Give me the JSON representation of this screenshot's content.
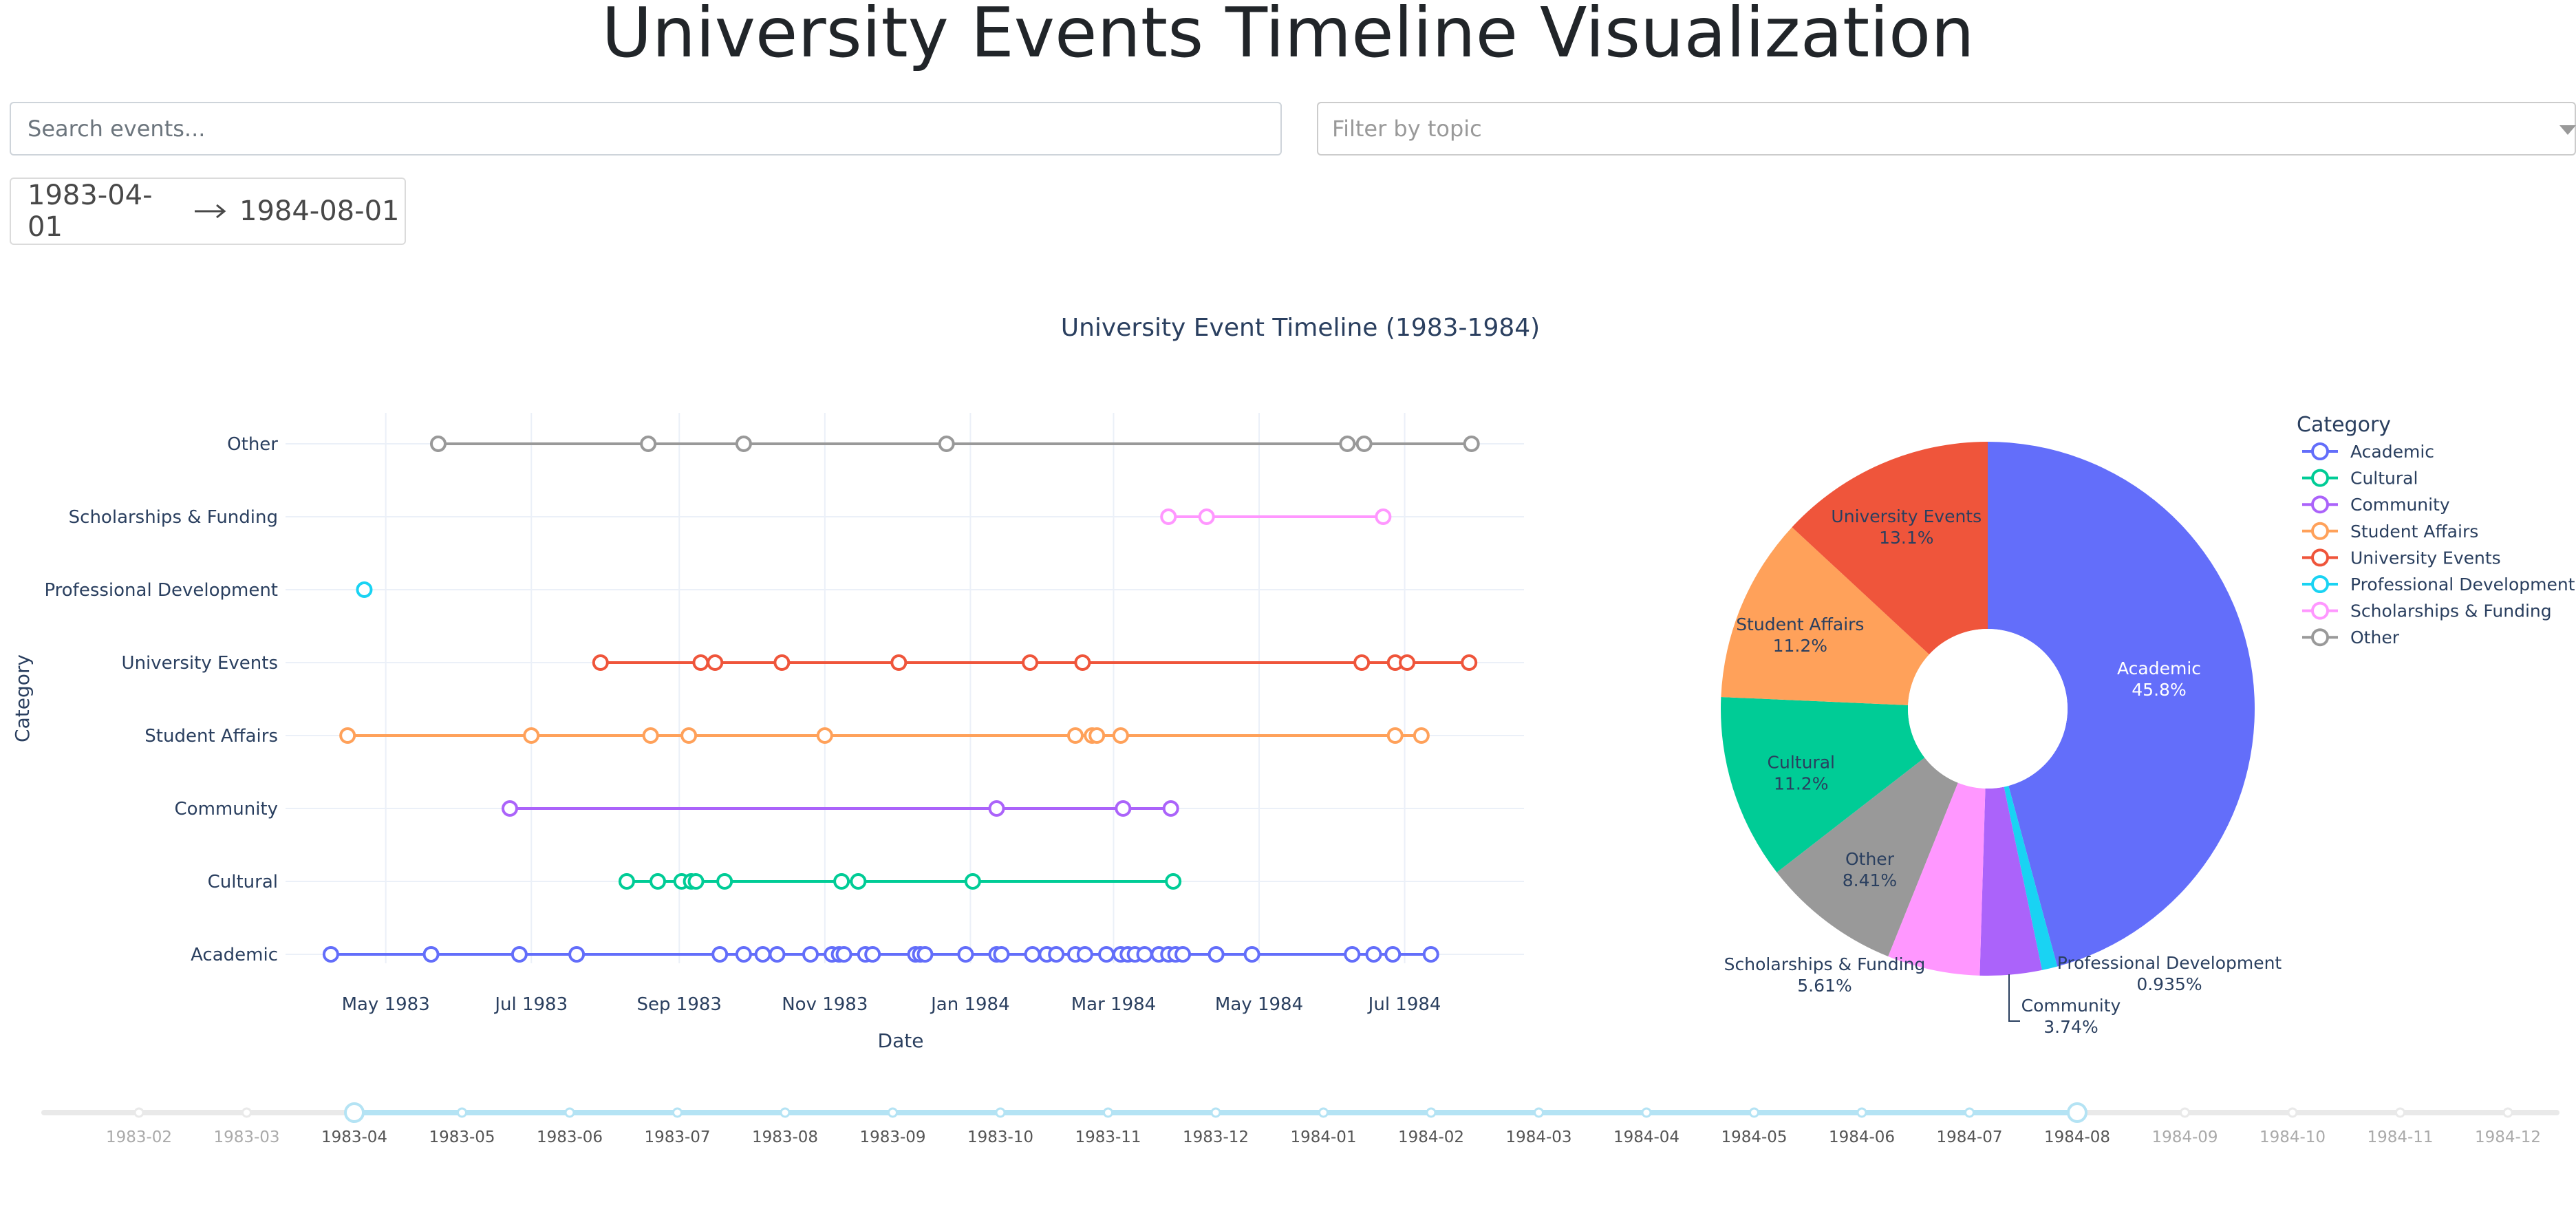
{
  "page": {
    "title": "University Events Timeline Visualization"
  },
  "search": {
    "placeholder": "Search events..."
  },
  "topic_filter": {
    "placeholder": "Filter by topic"
  },
  "date_range": {
    "start": "1983-04-01",
    "end": "1984-08-01"
  },
  "colors": {
    "Academic": "#636efa",
    "Cultural": "#00cc96",
    "Community": "#ab63fa",
    "Student Affairs": "#ffa15a",
    "University Events": "#ef553b",
    "Professional Development": "#19d3f3",
    "Scholarships & Funding": "#ff97ff",
    "Other": "#999999"
  },
  "chart_data": [
    {
      "type": "line",
      "subtype": "timeline",
      "title": "University Event Timeline (1983-1984)",
      "xlabel": "Date",
      "ylabel": "Category",
      "xlim": [
        "1983-03-20",
        "1984-08-20"
      ],
      "xticks": [
        {
          "date": "1983-05-01",
          "label": "May 1983"
        },
        {
          "date": "1983-07-01",
          "label": "Jul 1983"
        },
        {
          "date": "1983-09-01",
          "label": "Sep 1983"
        },
        {
          "date": "1983-11-01",
          "label": "Nov 1983"
        },
        {
          "date": "1984-01-01",
          "label": "Jan 1984"
        },
        {
          "date": "1984-03-01",
          "label": "Mar 1984"
        },
        {
          "date": "1984-05-01",
          "label": "May 1984"
        },
        {
          "date": "1984-07-01",
          "label": "Jul 1984"
        }
      ],
      "categories": [
        "Academic",
        "Cultural",
        "Community",
        "Student Affairs",
        "University Events",
        "Professional Development",
        "Scholarships & Funding",
        "Other"
      ],
      "grid": true,
      "series": [
        {
          "name": "Academic",
          "dates": [
            "1983-04-08",
            "1983-05-20",
            "1983-06-26",
            "1983-07-20",
            "1983-09-18",
            "1983-09-28",
            "1983-10-06",
            "1983-10-12",
            "1983-10-26",
            "1983-11-04",
            "1983-11-07",
            "1983-11-09",
            "1983-11-18",
            "1983-11-21",
            "1983-12-09",
            "1983-12-11",
            "1983-12-13",
            "1983-12-30",
            "1984-01-12",
            "1984-01-14",
            "1984-01-27",
            "1984-02-02",
            "1984-02-06",
            "1984-02-14",
            "1984-02-18",
            "1984-02-27",
            "1984-03-04",
            "1984-03-07",
            "1984-03-10",
            "1984-03-14",
            "1984-03-20",
            "1984-03-24",
            "1984-03-27",
            "1984-03-30",
            "1984-04-13",
            "1984-04-28",
            "1984-06-09",
            "1984-06-18",
            "1984-06-26",
            "1984-07-12"
          ]
        },
        {
          "name": "Cultural",
          "dates": [
            "1983-08-10",
            "1983-08-23",
            "1983-09-02",
            "1983-09-06",
            "1983-09-08",
            "1983-09-20",
            "1983-11-08",
            "1983-11-15",
            "1984-01-02",
            "1984-03-26"
          ]
        },
        {
          "name": "Community",
          "dates": [
            "1983-06-22",
            "1984-01-12",
            "1984-03-05",
            "1984-03-25"
          ]
        },
        {
          "name": "Student Affairs",
          "dates": [
            "1983-04-15",
            "1983-07-01",
            "1983-08-20",
            "1983-09-05",
            "1983-11-01",
            "1984-02-14",
            "1984-02-21",
            "1984-02-23",
            "1984-03-04",
            "1984-06-27",
            "1984-07-08"
          ]
        },
        {
          "name": "University Events",
          "dates": [
            "1983-07-30",
            "1983-09-10",
            "1983-09-16",
            "1983-10-14",
            "1983-12-02",
            "1984-01-26",
            "1984-02-17",
            "1984-06-13",
            "1984-06-27",
            "1984-07-02",
            "1984-07-28"
          ]
        },
        {
          "name": "Professional Development",
          "dates": [
            "1983-04-22"
          ]
        },
        {
          "name": "Scholarships & Funding",
          "dates": [
            "1984-03-24",
            "1984-04-09",
            "1984-06-22"
          ]
        },
        {
          "name": "Other",
          "dates": [
            "1983-05-23",
            "1983-08-19",
            "1983-09-28",
            "1983-12-22",
            "1984-06-07",
            "1984-06-14",
            "1984-07-29"
          ]
        }
      ]
    },
    {
      "type": "pie",
      "hole": true,
      "labels": [
        "Academic",
        "Professional Development",
        "Community",
        "Scholarships & Funding",
        "Other",
        "Cultural",
        "Student Affairs",
        "University Events"
      ],
      "values": [
        45.8,
        0.935,
        3.74,
        5.61,
        8.41,
        11.2,
        11.2,
        13.1
      ],
      "text_labels": [
        "45.8%",
        "0.935%",
        "3.74%",
        "5.61%",
        "8.41%",
        "11.2%",
        "11.2%",
        "13.1%"
      ],
      "legend_title": "Category",
      "legend": [
        "Academic",
        "Cultural",
        "Community",
        "Student Affairs",
        "University Events",
        "Professional Development",
        "Scholarships & Funding",
        "Other"
      ],
      "legend_position": "top-right"
    }
  ],
  "slider": {
    "marks": [
      "1983-02",
      "1983-03",
      "1983-04",
      "1983-05",
      "1983-06",
      "1983-07",
      "1983-08",
      "1983-09",
      "1983-10",
      "1983-11",
      "1983-12",
      "1984-01",
      "1984-02",
      "1984-03",
      "1984-04",
      "1984-05",
      "1984-06",
      "1984-07",
      "1984-08",
      "1984-09",
      "1984-10",
      "1984-11",
      "1984-12"
    ],
    "selected_start": "1983-04",
    "selected_end": "1984-08"
  }
}
